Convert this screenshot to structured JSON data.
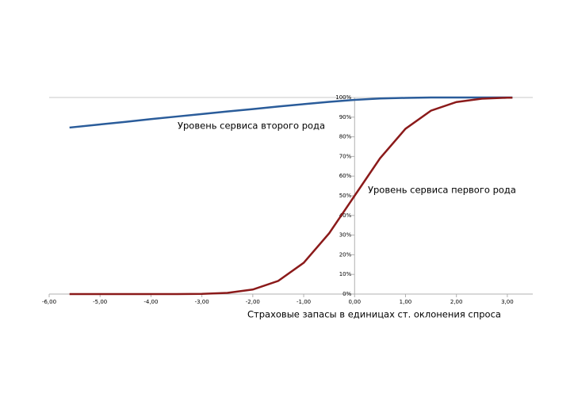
{
  "chart_data": {
    "type": "line",
    "x_label": "Страховые запасы в единицах ст. оклонения спроса",
    "annotations": [
      "Уровень сервиса второго рода",
      "Уровень сервиса первого рода"
    ],
    "x": [
      -5.6,
      -5,
      -4.5,
      -4,
      -3.5,
      -3,
      -2.5,
      -2,
      -1.5,
      -1,
      -0.5,
      0,
      0.5,
      1,
      1.5,
      2,
      2.5,
      3,
      3.1
    ],
    "series": [
      {
        "name": "Уровень сервиса второго рода",
        "color": "#2a5c9a",
        "values": [
          84.7,
          86.3,
          87.6,
          89,
          90.3,
          91.6,
          92.9,
          94.1,
          95.4,
          96.6,
          97.8,
          98.8,
          99.5,
          99.8,
          100,
          100,
          100,
          100,
          100
        ]
      },
      {
        "name": "Уровень сервиса первого рода",
        "color": "#8b1a1a",
        "values": [
          0,
          0,
          0,
          0,
          0,
          0.1,
          0.6,
          2.3,
          6.7,
          15.9,
          30.9,
          50,
          69.1,
          84.1,
          93.3,
          97.7,
          99.4,
          99.9,
          99.9
        ]
      }
    ],
    "xlim": [
      -6,
      3.5
    ],
    "xticks": [
      {
        "value": -6,
        "label": "-6,00"
      },
      {
        "value": -5,
        "label": "-5,00"
      },
      {
        "value": -4,
        "label": "-4,00"
      },
      {
        "value": -3,
        "label": "-3,00"
      },
      {
        "value": -2,
        "label": "-2,00"
      },
      {
        "value": -1,
        "label": "-1,00"
      },
      {
        "value": 0,
        "label": "0,00"
      },
      {
        "value": 1,
        "label": "1,00"
      },
      {
        "value": 2,
        "label": "2,00"
      },
      {
        "value": 3,
        "label": "3,00"
      }
    ],
    "ylim": [
      0,
      100
    ],
    "yticks": [
      {
        "value": 0,
        "label": "0%"
      },
      {
        "value": 10,
        "label": "10%"
      },
      {
        "value": 20,
        "label": "20%"
      },
      {
        "value": 30,
        "label": "30%"
      },
      {
        "value": 40,
        "label": "40%"
      },
      {
        "value": 50,
        "label": "50%"
      },
      {
        "value": 60,
        "label": "60%"
      },
      {
        "value": 70,
        "label": "70%"
      },
      {
        "value": 80,
        "label": "80%"
      },
      {
        "value": 90,
        "label": "90%"
      },
      {
        "value": 100,
        "label": "100%"
      }
    ]
  }
}
